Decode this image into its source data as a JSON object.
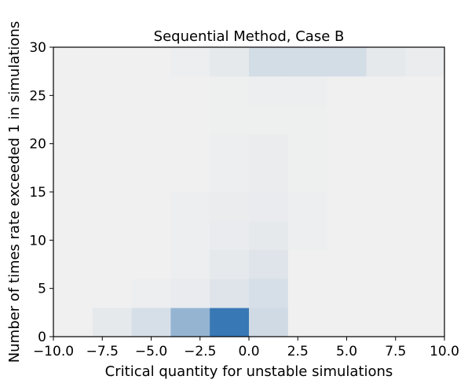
{
  "chart_data": {
    "type": "heatmap",
    "title": "Sequential Method, Case B",
    "xlabel": "Critical quantity for unstable simulations",
    "ylabel": "Number of times rate exceeded 1 in simulations",
    "xlim": [
      -10,
      10
    ],
    "ylim": [
      0,
      30
    ],
    "xticks": [
      -10,
      -7.5,
      -5,
      -2.5,
      0,
      2.5,
      5,
      7.5,
      10
    ],
    "xtick_labels": [
      "−10.0",
      "−7.5",
      "−5.0",
      "−2.5",
      "0.0",
      "2.5",
      "5.0",
      "7.5",
      "10.0"
    ],
    "yticks": [
      0,
      5,
      10,
      15,
      20,
      25,
      30
    ],
    "ytick_labels": [
      "0",
      "5",
      "10",
      "15",
      "20",
      "25",
      "30"
    ],
    "x_bin_edges": [
      -10,
      -8,
      -6,
      -4,
      -2,
      0,
      2,
      4,
      6,
      8,
      10
    ],
    "y_bin_edges": [
      0,
      3,
      6,
      9,
      12,
      15,
      18,
      21,
      24,
      27,
      30
    ],
    "colormap": {
      "low": "#f0f0f0",
      "high": "#3878b4"
    },
    "values": [
      [
        0,
        0.06,
        0.14,
        0.5,
        1.0,
        0.18,
        0,
        0,
        0,
        0
      ],
      [
        0,
        0,
        0.02,
        0.04,
        0.1,
        0.14,
        0,
        0,
        0,
        0
      ],
      [
        0,
        0,
        0,
        0.02,
        0.06,
        0.1,
        0,
        0,
        0,
        0
      ],
      [
        0,
        0,
        0,
        0.02,
        0.04,
        0.06,
        0.02,
        0,
        0,
        0
      ],
      [
        0,
        0,
        0,
        0.02,
        0.03,
        0.04,
        0.02,
        0,
        0,
        0
      ],
      [
        0,
        0,
        0,
        0,
        0.02,
        0.03,
        0.01,
        0,
        0,
        0
      ],
      [
        0,
        0,
        0,
        0,
        0.02,
        0.03,
        0.01,
        0,
        0,
        0
      ],
      [
        0,
        0,
        0,
        0,
        0.01,
        0.01,
        0.01,
        0,
        0,
        0
      ],
      [
        0,
        0,
        0,
        0,
        0.01,
        0.02,
        0.02,
        0,
        0,
        0
      ],
      [
        0,
        0,
        0,
        0.02,
        0.06,
        0.16,
        0.16,
        0.16,
        0.06,
        0.03
      ]
    ]
  }
}
